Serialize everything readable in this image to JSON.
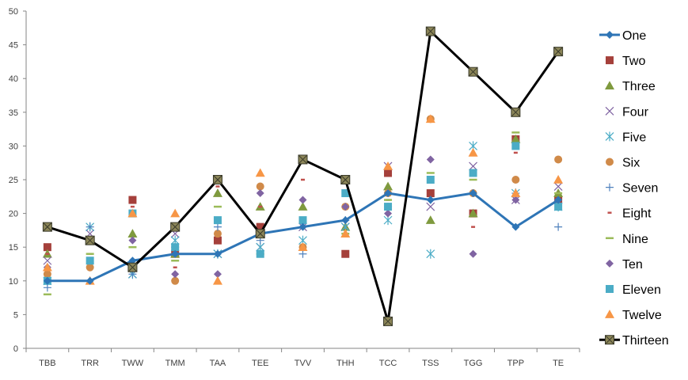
{
  "chart_data": {
    "type": "line",
    "categories": [
      "TBB",
      "TRR",
      "TWW",
      "TMM",
      "TAA",
      "TEE",
      "TVV",
      "THH",
      "TCC",
      "TSS",
      "TGG",
      "TPP",
      "TE"
    ],
    "ylim": [
      0,
      50
    ],
    "yticks": [
      0,
      5,
      10,
      15,
      20,
      25,
      30,
      35,
      40,
      45,
      50
    ],
    "grid": false,
    "legend": "right",
    "series": [
      {
        "name": "One",
        "marker": "diamond",
        "line": true,
        "color": "#2E75B6",
        "values": [
          10,
          10,
          13,
          14,
          14,
          17,
          18,
          19,
          23,
          22,
          23,
          18,
          22
        ]
      },
      {
        "name": "Two",
        "marker": "square",
        "line": false,
        "color": "#A5403B",
        "values": [
          15,
          16,
          22,
          14,
          16,
          18,
          28,
          14,
          26,
          23,
          20,
          31,
          22
        ]
      },
      {
        "name": "Three",
        "marker": "triangle",
        "line": false,
        "color": "#7F9A3E",
        "values": [
          14,
          16,
          17,
          14,
          23,
          21,
          21,
          18,
          24,
          19,
          20,
          31,
          23
        ]
      },
      {
        "name": "Four",
        "marker": "x",
        "line": false,
        "color": "#8064A2",
        "values": [
          13,
          17,
          11,
          17,
          14,
          15,
          18,
          18,
          27,
          21,
          27,
          22,
          24
        ]
      },
      {
        "name": "Five",
        "marker": "star",
        "line": false,
        "color": "#4BACC6",
        "values": [
          10,
          18,
          11,
          16,
          14,
          15,
          16,
          18,
          19,
          14,
          30,
          23,
          21
        ]
      },
      {
        "name": "Six",
        "marker": "circle",
        "line": false,
        "color": "#D08A49",
        "values": [
          11,
          12,
          12,
          10,
          17,
          24,
          15,
          21,
          23,
          34,
          23,
          25,
          28
        ]
      },
      {
        "name": "Seven",
        "marker": "plus",
        "line": false,
        "color": "#4F81BD",
        "values": [
          9,
          18,
          11,
          15,
          18,
          16,
          14,
          19,
          21,
          22,
          23,
          23,
          18
        ]
      },
      {
        "name": "Eight",
        "marker": "dash-short",
        "line": false,
        "color": "#C0504D",
        "values": [
          14,
          14,
          21,
          12,
          24,
          21,
          25,
          21,
          22,
          22,
          18,
          29,
          23
        ]
      },
      {
        "name": "Nine",
        "marker": "dash-long",
        "line": false,
        "color": "#9BBB59",
        "values": [
          8,
          14,
          15,
          13,
          21,
          14,
          19,
          17,
          22,
          26,
          25,
          32,
          23
        ]
      },
      {
        "name": "Ten",
        "marker": "diamond",
        "line": false,
        "color": "#8064A2",
        "values": [
          12,
          16,
          16,
          11,
          11,
          23,
          22,
          21,
          20,
          28,
          14,
          22,
          22
        ]
      },
      {
        "name": "Eleven",
        "marker": "square",
        "line": false,
        "color": "#4BACC6",
        "values": [
          10,
          13,
          20,
          15,
          19,
          14,
          19,
          23,
          21,
          25,
          26,
          30,
          21
        ]
      },
      {
        "name": "Twelve",
        "marker": "triangle",
        "line": false,
        "color": "#F79646",
        "values": [
          12,
          10,
          20,
          20,
          10,
          26,
          15,
          17,
          27,
          34,
          29,
          23,
          25
        ]
      },
      {
        "name": "Thirteen",
        "marker": "boxx",
        "line": true,
        "color": "#000000",
        "values": [
          18,
          16,
          12,
          18,
          25,
          17,
          28,
          25,
          4,
          47,
          41,
          35,
          44
        ]
      }
    ]
  }
}
